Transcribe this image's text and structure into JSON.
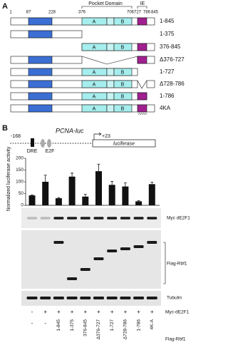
{
  "panel_a": {
    "label": "A",
    "ruler": [
      1,
      87,
      228,
      376,
      706,
      727,
      786,
      845
    ],
    "pocket_domain": "Pocket Domain",
    "ie": "IE",
    "box_labels": [
      "A",
      "B"
    ],
    "constructs": [
      "1-845",
      "1-375",
      "376-845",
      "Δ376-727",
      "1-727",
      "Δ728-786",
      "1-786",
      "4KA"
    ],
    "mutation": "AAAA"
  },
  "panel_b": {
    "label": "B",
    "reporter": {
      "name": "PCNA-luc",
      "start": "-168",
      "end": "+23",
      "dre": "DRE",
      "e2f": "E2F",
      "gene": "luciferase"
    },
    "blots": [
      "Myc dE2F1",
      "Flag-Rbf1",
      "Tubulin"
    ],
    "conditions": [
      {
        "name": "Myc-dE2F1",
        "lanes": [
          "-",
          "+",
          "+",
          "+",
          "+",
          "+",
          "+",
          "+",
          "+",
          "+"
        ]
      },
      {
        "name": "Flag-Rbf1",
        "lanes": [
          "-",
          "-",
          "1-845",
          "1-375",
          "376-845",
          "Δ376-727",
          "1-727",
          "Δ728-786",
          "1-786",
          "4K-A"
        ]
      }
    ]
  },
  "chart_data": {
    "type": "bar",
    "y_label": "Normalized luciferase activity",
    "values": [
      42,
      100,
      30,
      122,
      37,
      145,
      87,
      80,
      17,
      90
    ],
    "errors": [
      2,
      28,
      3,
      15,
      10,
      30,
      15,
      15,
      3,
      8
    ],
    "color": "#111111",
    "ylim": [
      0,
      200
    ],
    "yticks": [
      0,
      50,
      100,
      150,
      200
    ]
  }
}
